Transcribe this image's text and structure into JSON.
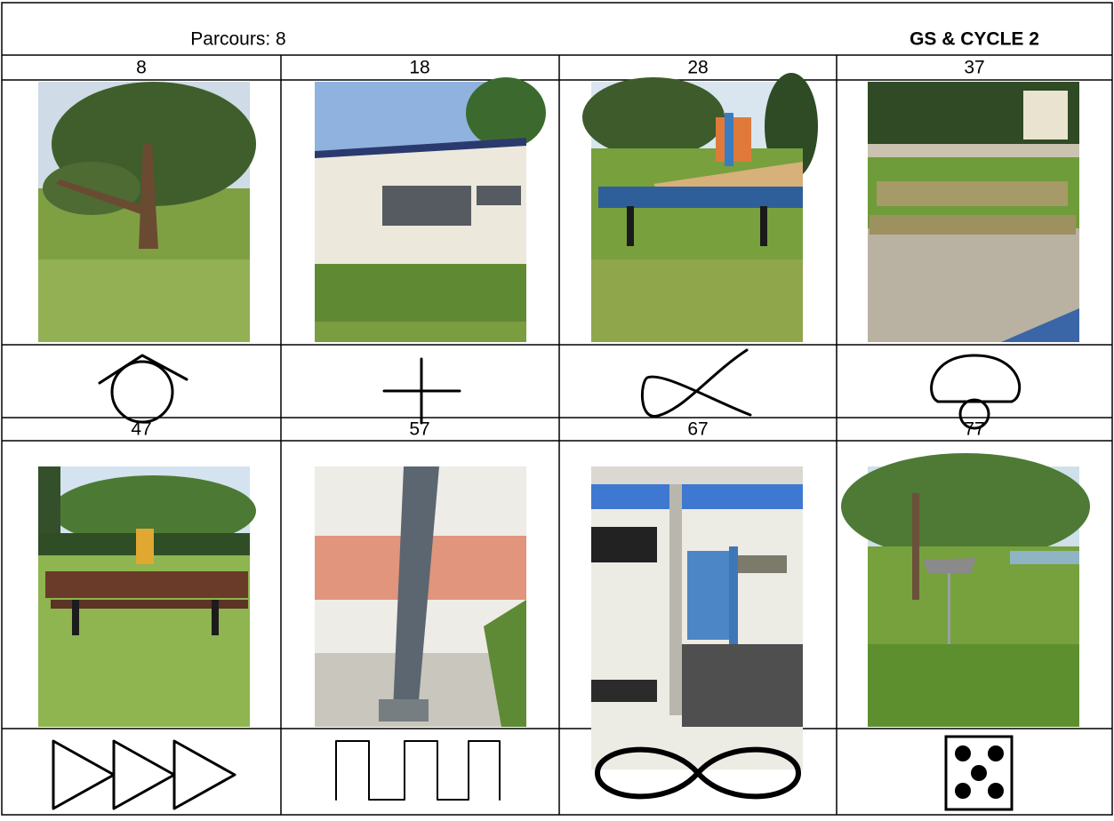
{
  "header": {
    "title": "Parcours: 8",
    "level": "GS  & CYCLE 2"
  },
  "table": {
    "rows": [
      [
        "8",
        "18",
        "28",
        "37"
      ],
      [
        "47",
        "57",
        "67",
        "77"
      ]
    ]
  }
}
